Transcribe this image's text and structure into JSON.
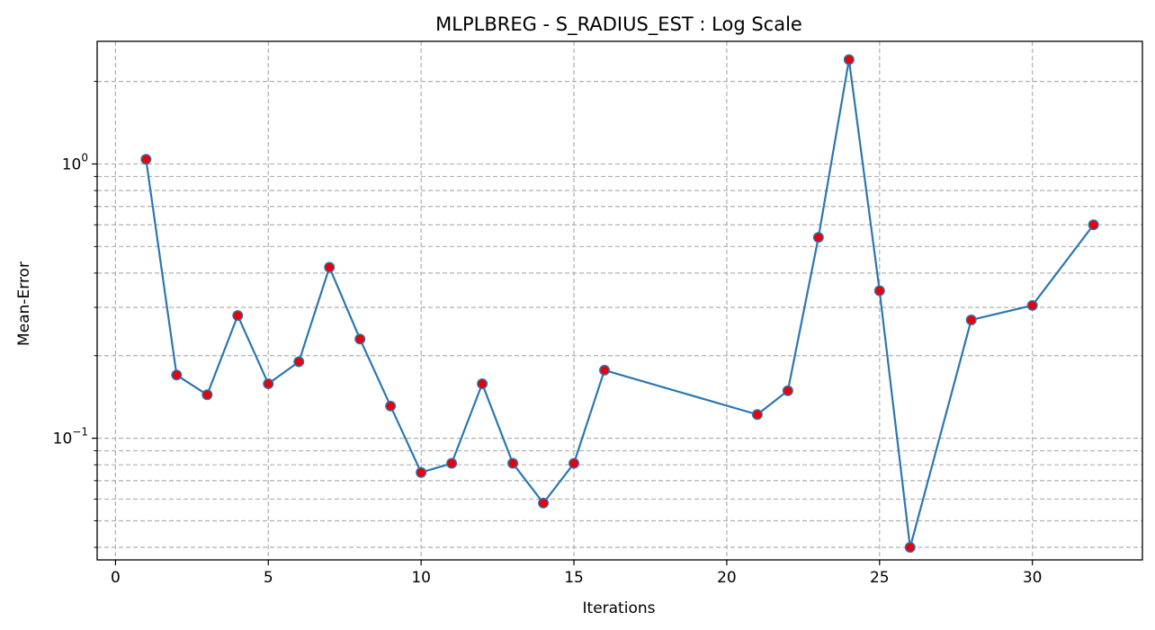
{
  "chart_data": {
    "type": "line",
    "title": "MLPLBREG - S_RADIUS_EST : Log Scale",
    "xlabel": "Iterations",
    "ylabel": "Mean-Error",
    "xlim": [
      -0.6,
      33.6
    ],
    "ylim": [
      0.036,
      2.8
    ],
    "yscale": "log",
    "grid": true,
    "x_ticks": [
      0,
      5,
      10,
      15,
      20,
      25,
      30
    ],
    "y_major_ticks": [
      {
        "value": 1,
        "base": "10",
        "exponent": "0"
      },
      {
        "value": 0.1,
        "base": "10",
        "exponent": "−1"
      }
    ],
    "y_minor_ticks": [
      0.04,
      0.05,
      0.06,
      0.07,
      0.08,
      0.09,
      0.2,
      0.3,
      0.4,
      0.5,
      0.6,
      0.7,
      0.8,
      0.9,
      2
    ],
    "series": [
      {
        "line_color": "#2b77b2",
        "marker_color": "#e8000b",
        "x": [
          1,
          2,
          3,
          4,
          5,
          6,
          7,
          8,
          9,
          10,
          11,
          12,
          13,
          14,
          15,
          16,
          21,
          22,
          23,
          24,
          25,
          26,
          28,
          30,
          32
        ],
        "y": [
          1.04,
          0.17,
          0.144,
          0.28,
          0.158,
          0.19,
          0.42,
          0.23,
          0.131,
          0.075,
          0.081,
          0.158,
          0.081,
          0.058,
          0.081,
          0.177,
          0.122,
          0.149,
          0.54,
          2.4,
          0.345,
          0.04,
          0.27,
          0.305,
          0.6
        ]
      }
    ]
  }
}
